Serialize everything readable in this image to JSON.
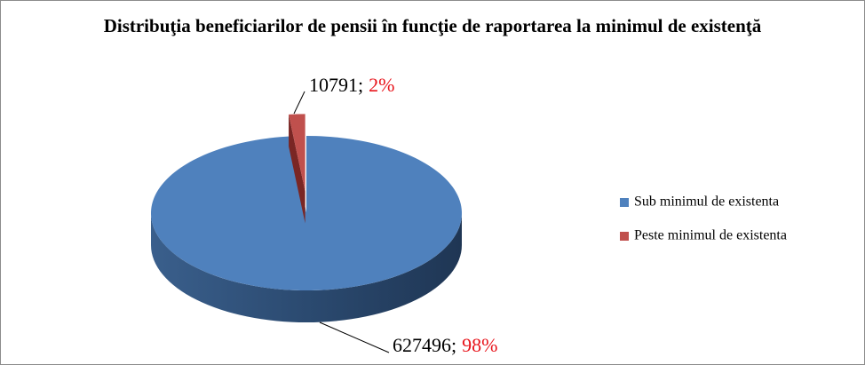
{
  "chart_data": {
    "type": "pie3d",
    "title": "Distribuţia beneficiarilor de pensii în funcţie de raportarea la minimul de existenţă",
    "categories": [
      "Sub minimul de existenta",
      "Peste minimul de existenta"
    ],
    "values": [
      627496,
      10791
    ],
    "value_labels": [
      "627496;",
      "10791;"
    ],
    "percent_labels": [
      "98%",
      "2%"
    ],
    "colors": [
      "#4f81bd",
      "#c0504d"
    ],
    "label_color": "#e8141b",
    "legend": "right"
  }
}
